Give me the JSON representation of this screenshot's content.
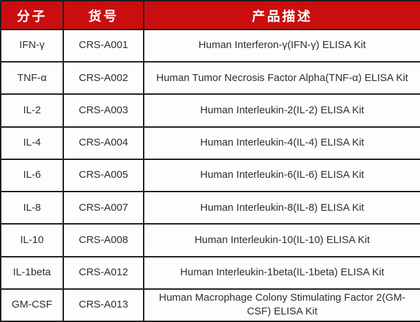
{
  "table": {
    "headers": {
      "molecule": "分子",
      "catalog": "货号",
      "description": "产品描述"
    },
    "rows": [
      {
        "molecule": "IFN-γ",
        "catalog": "CRS-A001",
        "description": "Human Interferon-γ(IFN-γ) ELISA Kit"
      },
      {
        "molecule": "TNF-α",
        "catalog": "CRS-A002",
        "description": "Human Tumor Necrosis Factor Alpha(TNF-α) ELISA Kit"
      },
      {
        "molecule": "IL-2",
        "catalog": "CRS-A003",
        "description": "Human Interleukin-2(IL-2) ELISA Kit"
      },
      {
        "molecule": "IL-4",
        "catalog": "CRS-A004",
        "description": "Human Interleukin-4(IL-4) ELISA Kit"
      },
      {
        "molecule": "IL-6",
        "catalog": "CRS-A005",
        "description": "Human Interleukin-6(IL-6) ELISA Kit"
      },
      {
        "molecule": "IL-8",
        "catalog": "CRS-A007",
        "description": "Human Interleukin-8(IL-8) ELISA Kit"
      },
      {
        "molecule": "IL-10",
        "catalog": "CRS-A008",
        "description": "Human Interleukin-10(IL-10) ELISA Kit"
      },
      {
        "molecule": "IL-1beta",
        "catalog": "CRS-A012",
        "description": "Human Interleukin-1beta(IL-1beta) ELISA Kit"
      },
      {
        "molecule": "GM-CSF",
        "catalog": "CRS-A013",
        "description": "Human Macrophage Colony Stimulating Factor 2(GM-CSF) ELISA Kit"
      }
    ],
    "colors": {
      "header_bg": "#ca0e10",
      "header_text": "#ffffff",
      "body_text": "#2e2e2e",
      "border": "#1c1c1c",
      "body_bg": "#fdfdfd"
    }
  }
}
